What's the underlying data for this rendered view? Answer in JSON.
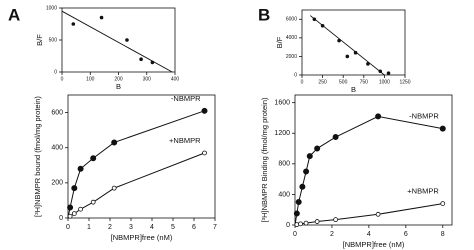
{
  "chart_data": [
    {
      "type": "scatter",
      "label": "A",
      "xlabel": "B",
      "ylabel": "B/F",
      "xlim": [
        0,
        400
      ],
      "xticks": [
        0,
        100,
        200,
        300,
        400
      ],
      "ylim": [
        0,
        1000
      ],
      "yticks": [
        0,
        500,
        1000
      ],
      "series": [
        {
          "color": "#111111",
          "x": [
            40,
            140,
            230,
            280,
            320
          ],
          "values": [
            750,
            850,
            500,
            200,
            150
          ]
        }
      ],
      "fit_line": {
        "x": [
          0,
          390
        ],
        "values": [
          950,
          0
        ]
      }
    },
    {
      "type": "line",
      "xlabel": "[NBMPR]free (nM)",
      "ylabel": "[³H]NBMPR bound (fmol/mg protein)",
      "xlim": [
        0,
        7
      ],
      "xticks": [
        0,
        1,
        2,
        3,
        4,
        5,
        6,
        7
      ],
      "ylim": [
        0,
        700
      ],
      "yticks": [
        0,
        200,
        400,
        600
      ],
      "series": [
        {
          "name": "-NBMPR",
          "color": "#111111",
          "marker": "filled",
          "x": [
            0.1,
            0.3,
            0.6,
            1.2,
            2.2,
            6.5
          ],
          "values": [
            60,
            170,
            280,
            340,
            430,
            610
          ]
        },
        {
          "name": "+NBMPR",
          "color": "#111111",
          "marker": "open",
          "x": [
            0.1,
            0.3,
            0.6,
            1.2,
            2.2,
            6.5
          ],
          "values": [
            10,
            25,
            50,
            90,
            170,
            370
          ]
        }
      ]
    },
    {
      "type": "scatter",
      "label": "B",
      "xlabel": "B",
      "ylabel": "B/F",
      "xlim": [
        0,
        1250
      ],
      "xticks": [
        0,
        250,
        500,
        750,
        1000,
        1250
      ],
      "ylim": [
        0,
        7000
      ],
      "yticks": [
        0,
        2000,
        4000,
        6000
      ],
      "series": [
        {
          "color": "#111111",
          "x": [
            150,
            250,
            450,
            550,
            650,
            800,
            950,
            1050
          ],
          "values": [
            6000,
            5300,
            3700,
            2000,
            2400,
            1200,
            400,
            200
          ]
        }
      ],
      "fit_line": {
        "x": [
          100,
          1000
        ],
        "values": [
          6400,
          0
        ]
      }
    },
    {
      "type": "line",
      "xlabel": "[NBMPR]free (nM)",
      "ylabel": "[³H]NBMPR Binding (fmol/mg protein)",
      "xlim": [
        0,
        8.5
      ],
      "xticks": [
        0,
        2,
        4,
        6,
        8
      ],
      "ylim": [
        0,
        1700
      ],
      "yticks": [
        0,
        400,
        800,
        1200,
        1600
      ],
      "series": [
        {
          "name": "-NBMPR",
          "color": "#111111",
          "marker": "filled",
          "x": [
            0.1,
            0.2,
            0.4,
            0.6,
            0.8,
            1.2,
            2.2,
            4.5,
            8
          ],
          "values": [
            150,
            300,
            500,
            700,
            900,
            1000,
            1150,
            1420,
            1260
          ]
        },
        {
          "name": "+NBMPR",
          "color": "#111111",
          "marker": "open",
          "x": [
            0.1,
            0.3,
            0.6,
            1.2,
            2.2,
            4.5,
            8
          ],
          "values": [
            5,
            15,
            25,
            45,
            70,
            140,
            280
          ]
        }
      ]
    }
  ]
}
